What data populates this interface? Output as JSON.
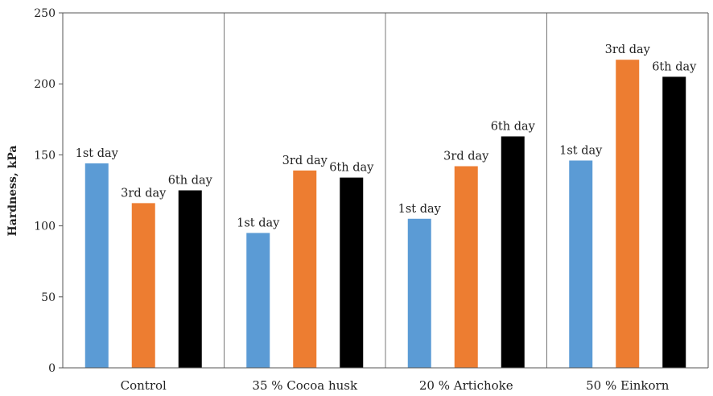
{
  "chart_data": {
    "type": "bar",
    "ylabel": "Hardness, kPa",
    "xlabel": "",
    "ylim": [
      0,
      250
    ],
    "yticks": [
      0,
      50,
      100,
      150,
      200,
      250
    ],
    "grid": false,
    "group_separators": true,
    "categories": [
      "Control",
      "35 % Cocoa husk",
      "20 % Artichoke",
      "50 % Einkorn"
    ],
    "series": [
      {
        "name": "1st day",
        "color": "#5B9BD5",
        "values": [
          144,
          95,
          105,
          146
        ]
      },
      {
        "name": "3rd day",
        "color": "#ED7D31",
        "values": [
          116,
          139,
          142,
          217
        ]
      },
      {
        "name": "6th day",
        "color": "#000000",
        "values": [
          125,
          134,
          163,
          205
        ]
      }
    ]
  }
}
